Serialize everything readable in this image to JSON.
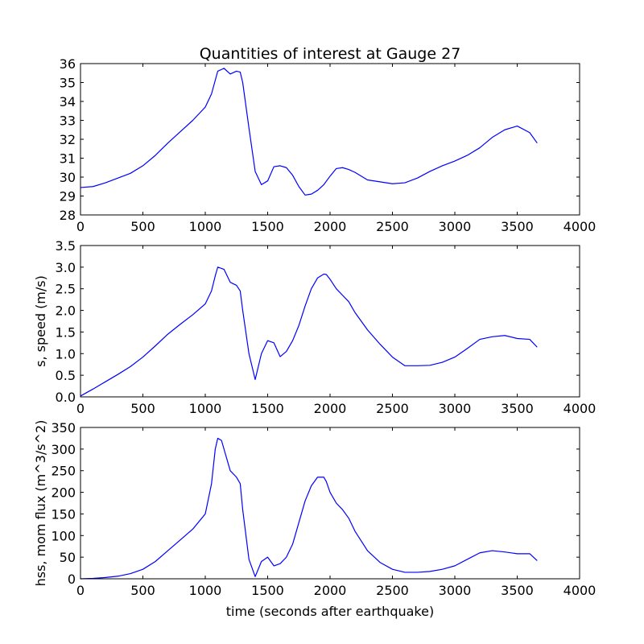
{
  "figure": {
    "title": "Quantities of interest at Gauge 27",
    "xlabel": "time (seconds after earthquake)",
    "line_color": "#0000ff",
    "background": "#ffffff"
  },
  "chart_data": [
    {
      "type": "line",
      "title": "Quantities of interest at Gauge 27",
      "xlabel": "",
      "ylabel": "",
      "xlim": [
        0,
        4000
      ],
      "ylim": [
        28,
        36
      ],
      "xticks": [
        0,
        500,
        1000,
        1500,
        2000,
        2500,
        3000,
        3500,
        4000
      ],
      "yticks": [
        28,
        29,
        30,
        31,
        32,
        33,
        34,
        35,
        36
      ],
      "grid": false,
      "series": [
        {
          "color": "#0000ff",
          "x": [
            0,
            100,
            200,
            300,
            400,
            500,
            600,
            700,
            800,
            900,
            1000,
            1050,
            1100,
            1150,
            1200,
            1250,
            1280,
            1300,
            1350,
            1400,
            1450,
            1500,
            1550,
            1600,
            1650,
            1700,
            1750,
            1800,
            1850,
            1900,
            1950,
            2000,
            2050,
            2100,
            2150,
            2200,
            2300,
            2400,
            2500,
            2600,
            2700,
            2800,
            2900,
            3000,
            3100,
            3200,
            3300,
            3400,
            3500,
            3600,
            3660
          ],
          "y": [
            29.45,
            29.5,
            29.7,
            29.95,
            30.2,
            30.6,
            31.15,
            31.8,
            32.4,
            33.0,
            33.7,
            34.4,
            35.6,
            35.75,
            35.45,
            35.6,
            35.55,
            35.0,
            32.6,
            30.3,
            29.6,
            29.8,
            30.55,
            30.6,
            30.5,
            30.1,
            29.5,
            29.05,
            29.1,
            29.3,
            29.6,
            30.05,
            30.45,
            30.5,
            30.4,
            30.25,
            29.85,
            29.75,
            29.65,
            29.7,
            29.95,
            30.3,
            30.6,
            30.85,
            31.15,
            31.55,
            32.1,
            32.5,
            32.7,
            32.35,
            31.8
          ]
        }
      ]
    },
    {
      "type": "line",
      "xlabel": "",
      "ylabel": "s, speed (m/s)",
      "xlim": [
        0,
        4000
      ],
      "ylim": [
        0,
        3.5
      ],
      "xticks": [
        0,
        500,
        1000,
        1500,
        2000,
        2500,
        3000,
        3500,
        4000
      ],
      "yticks": [
        0.0,
        0.5,
        1.0,
        1.5,
        2.0,
        2.5,
        3.0,
        3.5
      ],
      "grid": false,
      "series": [
        {
          "color": "#0000ff",
          "x": [
            0,
            100,
            200,
            300,
            400,
            500,
            600,
            700,
            800,
            900,
            1000,
            1050,
            1080,
            1100,
            1150,
            1200,
            1250,
            1280,
            1300,
            1350,
            1400,
            1450,
            1500,
            1550,
            1600,
            1650,
            1700,
            1750,
            1800,
            1850,
            1900,
            1950,
            1970,
            2000,
            2050,
            2100,
            2150,
            2200,
            2300,
            2400,
            2500,
            2600,
            2700,
            2800,
            2900,
            3000,
            3100,
            3200,
            3300,
            3400,
            3500,
            3600,
            3660
          ],
          "y": [
            0.02,
            0.18,
            0.35,
            0.52,
            0.7,
            0.92,
            1.18,
            1.45,
            1.68,
            1.9,
            2.15,
            2.45,
            2.8,
            3.0,
            2.95,
            2.65,
            2.58,
            2.45,
            2.0,
            1.0,
            0.4,
            1.0,
            1.3,
            1.25,
            0.93,
            1.05,
            1.3,
            1.65,
            2.1,
            2.5,
            2.75,
            2.84,
            2.83,
            2.72,
            2.5,
            2.35,
            2.2,
            1.95,
            1.55,
            1.22,
            0.92,
            0.72,
            0.72,
            0.73,
            0.8,
            0.92,
            1.12,
            1.33,
            1.39,
            1.42,
            1.35,
            1.33,
            1.15
          ]
        }
      ]
    },
    {
      "type": "line",
      "xlabel": "time (seconds after earthquake)",
      "ylabel": "hss, mom flux (m^3/s^2)",
      "xlim": [
        0,
        4000
      ],
      "ylim": [
        0,
        350
      ],
      "xticks": [
        0,
        500,
        1000,
        1500,
        2000,
        2500,
        3000,
        3500,
        4000
      ],
      "yticks": [
        0,
        50,
        100,
        150,
        200,
        250,
        300,
        350
      ],
      "grid": false,
      "series": [
        {
          "color": "#0000ff",
          "x": [
            0,
            100,
            200,
            300,
            400,
            500,
            600,
            700,
            800,
            900,
            1000,
            1050,
            1080,
            1100,
            1130,
            1150,
            1200,
            1250,
            1280,
            1300,
            1350,
            1400,
            1450,
            1500,
            1550,
            1600,
            1650,
            1700,
            1750,
            1800,
            1850,
            1900,
            1950,
            1970,
            2000,
            2050,
            2100,
            2150,
            2200,
            2300,
            2400,
            2500,
            2600,
            2700,
            2800,
            2900,
            3000,
            3100,
            3200,
            3300,
            3400,
            3500,
            3600,
            3660
          ],
          "y": [
            0,
            1,
            3,
            6,
            12,
            22,
            40,
            65,
            90,
            115,
            150,
            220,
            300,
            325,
            320,
            300,
            250,
            235,
            220,
            160,
            45,
            5,
            40,
            50,
            30,
            35,
            50,
            80,
            130,
            180,
            215,
            235,
            235,
            225,
            200,
            175,
            160,
            140,
            110,
            65,
            38,
            22,
            15,
            15,
            17,
            22,
            30,
            45,
            60,
            65,
            62,
            58,
            58,
            42
          ]
        }
      ]
    }
  ]
}
